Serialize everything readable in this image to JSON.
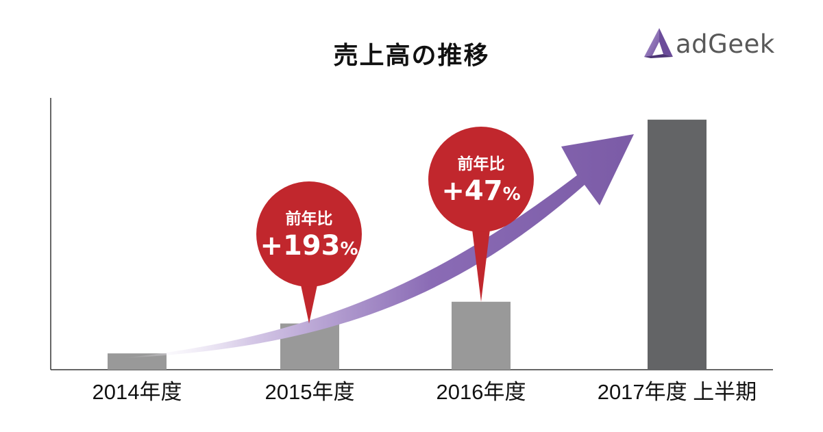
{
  "title": "売上高の推移",
  "logo": {
    "name": "adGeek",
    "icon": "adgeek-logo-icon"
  },
  "colors": {
    "bar": "#999999",
    "bar_highlight": "#636466",
    "arrow": "#7b5ba6",
    "bubble": "#c1272d",
    "axis": "#333333"
  },
  "chart_data": {
    "type": "bar",
    "title": "売上高の推移",
    "categories": [
      "2014年度",
      "2015年度",
      "2016年度",
      "2017年度 上半期"
    ],
    "values": [
      6,
      17,
      25,
      92
    ],
    "ylim": [
      0,
      100
    ],
    "yticks": false,
    "grid": false,
    "highlighted_category": "2017年度 上半期",
    "trend_arrow": true,
    "annotations": [
      {
        "category": "2015年度",
        "label": "前年比",
        "sign": "+",
        "number": "193",
        "unit": "%"
      },
      {
        "category": "2016年度",
        "label": "前年比",
        "sign": "+",
        "number": "47",
        "unit": "%"
      }
    ]
  }
}
